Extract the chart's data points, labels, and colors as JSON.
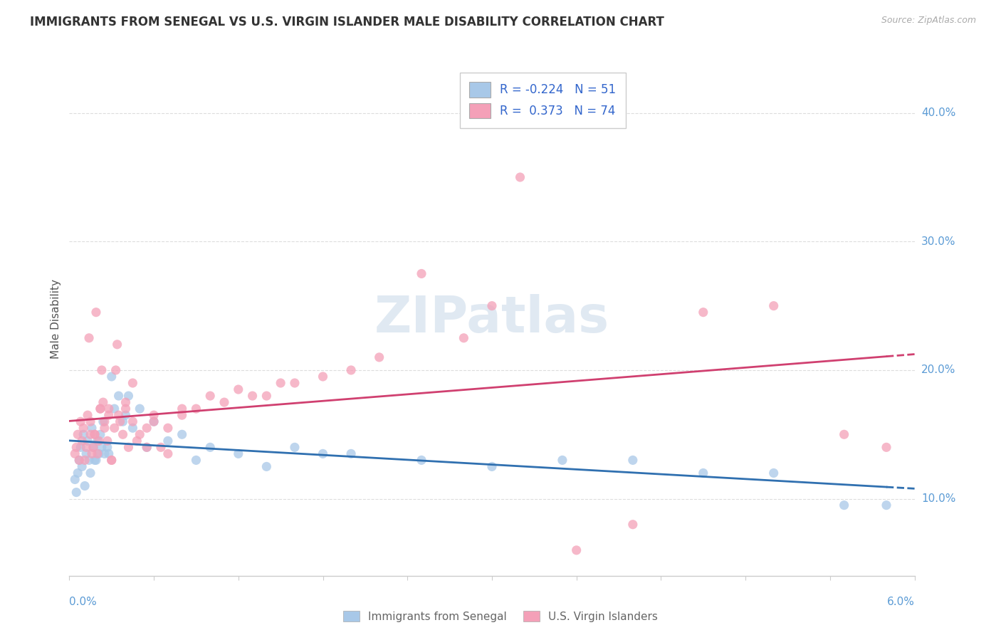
{
  "title": "IMMIGRANTS FROM SENEGAL VS U.S. VIRGIN ISLANDER MALE DISABILITY CORRELATION CHART",
  "source": "Source: ZipAtlas.com",
  "ylabel": "Male Disability",
  "xlim": [
    0.0,
    6.0
  ],
  "ylim": [
    4.0,
    44.0
  ],
  "yticks": [
    10.0,
    20.0,
    30.0,
    40.0
  ],
  "color_blue": "#a8c8e8",
  "color_pink": "#f4a0b8",
  "color_blue_line": "#3070b0",
  "color_pink_line": "#d04070",
  "r_blue": -0.224,
  "n_blue": 51,
  "r_pink": 0.373,
  "n_pink": 74,
  "watermark": "ZIPatlas",
  "senegal_x": [
    0.04,
    0.05,
    0.06,
    0.07,
    0.08,
    0.09,
    0.1,
    0.11,
    0.12,
    0.13,
    0.14,
    0.15,
    0.16,
    0.17,
    0.18,
    0.19,
    0.2,
    0.21,
    0.22,
    0.23,
    0.24,
    0.25,
    0.27,
    0.28,
    0.3,
    0.32,
    0.35,
    0.38,
    0.4,
    0.42,
    0.45,
    0.5,
    0.55,
    0.6,
    0.7,
    0.8,
    0.9,
    1.0,
    1.2,
    1.4,
    1.6,
    1.8,
    2.0,
    2.5,
    3.0,
    3.5,
    4.0,
    4.5,
    5.0,
    5.5,
    5.8
  ],
  "senegal_y": [
    11.5,
    10.5,
    12.0,
    13.0,
    14.0,
    12.5,
    15.0,
    11.0,
    13.5,
    14.5,
    13.0,
    12.0,
    15.5,
    14.0,
    13.0,
    13.0,
    14.5,
    13.5,
    15.0,
    14.0,
    16.0,
    13.5,
    14.0,
    13.5,
    19.5,
    17.0,
    18.0,
    16.0,
    16.5,
    18.0,
    15.5,
    17.0,
    14.0,
    16.0,
    14.5,
    15.0,
    13.0,
    14.0,
    13.5,
    12.5,
    14.0,
    13.5,
    13.5,
    13.0,
    12.5,
    13.0,
    13.0,
    12.0,
    12.0,
    9.5,
    9.5
  ],
  "virgin_x": [
    0.04,
    0.05,
    0.06,
    0.07,
    0.08,
    0.09,
    0.1,
    0.11,
    0.12,
    0.13,
    0.14,
    0.15,
    0.16,
    0.17,
    0.18,
    0.19,
    0.2,
    0.21,
    0.22,
    0.23,
    0.24,
    0.25,
    0.27,
    0.28,
    0.3,
    0.32,
    0.34,
    0.36,
    0.38,
    0.4,
    0.42,
    0.45,
    0.48,
    0.5,
    0.55,
    0.6,
    0.65,
    0.7,
    0.8,
    0.9,
    1.0,
    1.2,
    1.4,
    1.6,
    1.8,
    2.0,
    2.2,
    2.5,
    2.8,
    3.0,
    3.2,
    3.6,
    4.0,
    4.5,
    5.0,
    5.5,
    5.8,
    0.35,
    0.45,
    0.22,
    0.3,
    0.15,
    0.18,
    0.25,
    0.28,
    0.33,
    0.4,
    0.6,
    0.8,
    1.1,
    1.3,
    1.5,
    0.55,
    0.7
  ],
  "virgin_y": [
    13.5,
    14.0,
    15.0,
    13.0,
    16.0,
    14.5,
    15.5,
    13.0,
    14.0,
    16.5,
    22.5,
    15.0,
    13.5,
    14.0,
    15.0,
    24.5,
    13.5,
    14.5,
    17.0,
    20.0,
    17.5,
    16.0,
    14.5,
    17.0,
    13.0,
    15.5,
    22.0,
    16.0,
    15.0,
    17.5,
    14.0,
    19.0,
    14.5,
    15.0,
    15.5,
    16.0,
    14.0,
    15.5,
    16.5,
    17.0,
    18.0,
    18.5,
    18.0,
    19.0,
    19.5,
    20.0,
    21.0,
    27.5,
    22.5,
    25.0,
    35.0,
    6.0,
    8.0,
    24.5,
    25.0,
    15.0,
    14.0,
    16.5,
    16.0,
    17.0,
    13.0,
    16.0,
    15.0,
    15.5,
    16.5,
    20.0,
    17.0,
    16.5,
    17.0,
    17.5,
    18.0,
    19.0,
    14.0,
    13.5
  ]
}
